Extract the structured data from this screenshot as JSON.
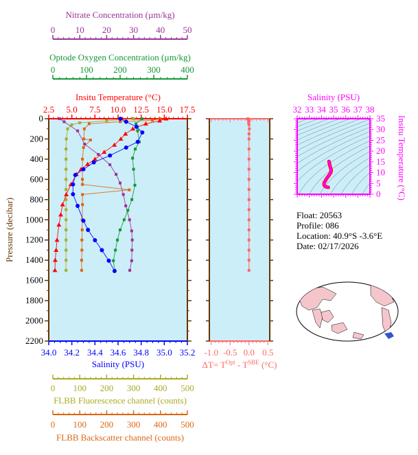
{
  "colors": {
    "nitrate": "#993399",
    "oxygen": "#119933",
    "temperature": "#ff0000",
    "salinity": "#0000ff",
    "fluorescence": "#aaaa22",
    "backscatter": "#dd6611",
    "delta_t": "#ff6666",
    "ts": "#ff00ff",
    "pressure_axis": "#663300",
    "plot_bg": "#cceef8"
  },
  "info": {
    "float": "Float:  20563",
    "profile": "Profile:  086",
    "location": "Location:  40.9°S  -3.6°E",
    "date": "Date:  02/17/2026"
  },
  "chart_data": [
    {
      "type": "line",
      "name": "profile-panel",
      "ylabel": "Pressure (decibar)",
      "ylim": [
        2200,
        0
      ],
      "yticks": [
        "0",
        "200",
        "400",
        "600",
        "800",
        "1000",
        "1200",
        "1400",
        "1600",
        "1800",
        "2000",
        "2200"
      ],
      "grid": false,
      "axes": {
        "nitrate": {
          "label": "Nitrate Concentration (µm/kg)",
          "lim": [
            0,
            50
          ],
          "ticks": [
            "0",
            "10",
            "20",
            "30",
            "40",
            "50"
          ],
          "position": "top"
        },
        "oxygen": {
          "label": "Optode Oxygen Concentration (µm/kg)",
          "lim": [
            0,
            400
          ],
          "ticks": [
            "0",
            "100",
            "200",
            "300",
            "400"
          ],
          "position": "top"
        },
        "temperature": {
          "label": "Insitu Temperature (°C)",
          "lim": [
            2.5,
            17.5
          ],
          "ticks": [
            "2.5",
            "5.0",
            "7.5",
            "10.0",
            "12.5",
            "15.0",
            "17.5"
          ],
          "position": "top"
        },
        "salinity": {
          "label": "Salinity (PSU)",
          "lim": [
            34.0,
            35.2
          ],
          "ticks": [
            "34.0",
            "34.2",
            "34.4",
            "34.6",
            "34.8",
            "35.0",
            "35.2"
          ],
          "position": "bottom"
        },
        "fluorescence": {
          "label": "FLBB Fluorescence channel (counts)",
          "lim": [
            0,
            500
          ],
          "ticks": [
            "0",
            "100",
            "200",
            "300",
            "400",
            "500"
          ],
          "position": "bottom"
        },
        "backscatter": {
          "label": "FLBB Backscatter channel (counts)",
          "lim": [
            0,
            500
          ],
          "ticks": [
            "0",
            "100",
            "200",
            "300",
            "400",
            "500"
          ],
          "position": "bottom"
        }
      },
      "series": [
        {
          "key": "temperature",
          "marker": "triangle",
          "pressure": [
            0,
            20,
            50,
            100,
            150,
            200,
            260,
            330,
            400,
            450,
            500,
            550,
            650,
            750,
            850,
            950,
            1050,
            1200,
            1300,
            1400,
            1500
          ],
          "values": [
            15.2,
            14.5,
            13.0,
            11.6,
            10.8,
            10.3,
            9.6,
            8.5,
            7.5,
            6.7,
            6.0,
            5.5,
            4.9,
            4.4,
            4.0,
            3.8,
            3.6,
            3.4,
            3.3,
            3.2,
            3.17
          ]
        },
        {
          "key": "salinity",
          "marker": "circle",
          "pressure": [
            0,
            30,
            80,
            136,
            229,
            285,
            364,
            432,
            500,
            557,
            650,
            747,
            862,
            1009,
            1100,
            1202,
            1300,
            1405,
            1507
          ],
          "values": [
            34.62,
            34.67,
            34.76,
            34.81,
            34.77,
            34.67,
            34.53,
            34.39,
            34.3,
            34.23,
            34.21,
            34.21,
            34.25,
            34.3,
            34.34,
            34.4,
            34.46,
            34.52,
            34.57
          ]
        },
        {
          "key": "oxygen",
          "marker": "square",
          "pressure": [
            0,
            50,
            120,
            229,
            300,
            390,
            500,
            658,
            800,
            907,
            1000,
            1100,
            1200,
            1300,
            1405,
            1500
          ],
          "values": [
            265,
            247,
            252,
            257,
            245,
            237,
            240,
            244,
            235,
            223,
            212,
            200,
            192,
            186,
            180,
            184
          ]
        },
        {
          "key": "nitrate",
          "marker": "square",
          "pressure": [
            0,
            30,
            120,
            251,
            353,
            455,
            550,
            636,
            750,
            862,
            1000,
            1110,
            1200,
            1300,
            1405,
            1500
          ],
          "values": [
            2.5,
            4.2,
            9.2,
            11.8,
            16.9,
            21.2,
            23.5,
            25,
            26.2,
            27.1,
            28.5,
            29.3,
            29.5,
            29.4,
            29.3,
            28.6
          ]
        },
        {
          "key": "fluorescence",
          "marker": "square",
          "pressure": [
            0,
            20,
            40,
            60,
            100,
            200,
            300,
            400,
            500,
            600,
            700,
            800,
            900,
            1000,
            1100,
            1200,
            1300,
            1400,
            1500
          ],
          "values": [
            300,
            200,
            100,
            70,
            55,
            50,
            49,
            49,
            49,
            49,
            49,
            49,
            49,
            49,
            49,
            49,
            49,
            49,
            49
          ]
        },
        {
          "key": "backscatter",
          "marker": "square",
          "pressure": [
            0,
            15,
            30,
            50,
            100,
            200,
            210,
            285,
            400,
            500,
            600,
            650,
            704,
            750,
            850,
            1000,
            1100,
            1200,
            1300,
            1400,
            1500
          ],
          "values": [
            398,
            370,
            250,
            135,
            117,
            115,
            140,
            114,
            110,
            110,
            110,
            110,
            284,
            110,
            110,
            109,
            109,
            108,
            108,
            107,
            107
          ]
        }
      ]
    },
    {
      "type": "line",
      "name": "delta-t-panel",
      "xlabel": "ΔT= T^Opt - T^SBE (°C)",
      "xlabel_parts": {
        "prefix": "ΔT= T",
        "sup1": "Opt",
        "mid": " - T",
        "sup2": "SBE",
        "suffix": " (°C)"
      },
      "xlim": [
        -1.05,
        0.55
      ],
      "xticks": [
        "-1.0",
        "-0.5",
        "0.0",
        "0.5"
      ],
      "ylim": [
        2200,
        0
      ],
      "pressure": [
        0,
        10,
        20,
        40,
        60,
        100,
        150,
        200,
        300,
        400,
        500,
        600,
        700,
        800,
        900,
        1000,
        1100,
        1200,
        1300,
        1400,
        1500
      ],
      "values": [
        -0.03,
        -0.02,
        0.01,
        -0.01,
        0.0,
        0.01,
        0.0,
        0.0,
        0.0,
        0.0,
        0.0,
        0.0,
        0.0,
        0.0,
        0.0,
        0.0,
        0.0,
        0.0,
        0.0,
        0.0,
        0.0
      ]
    },
    {
      "type": "scatter",
      "name": "ts-diagram",
      "xlabel": "Salinity (PSU)",
      "ylabel": "Insitu Temperature (°C)",
      "xlim": [
        32,
        38
      ],
      "xticks": [
        "32",
        "33",
        "34",
        "35",
        "36",
        "37",
        "38"
      ],
      "ylim": [
        0,
        35
      ],
      "yticks": [
        "0",
        "5",
        "10",
        "15",
        "20",
        "25",
        "30",
        "35"
      ],
      "density_contours": true
    }
  ]
}
